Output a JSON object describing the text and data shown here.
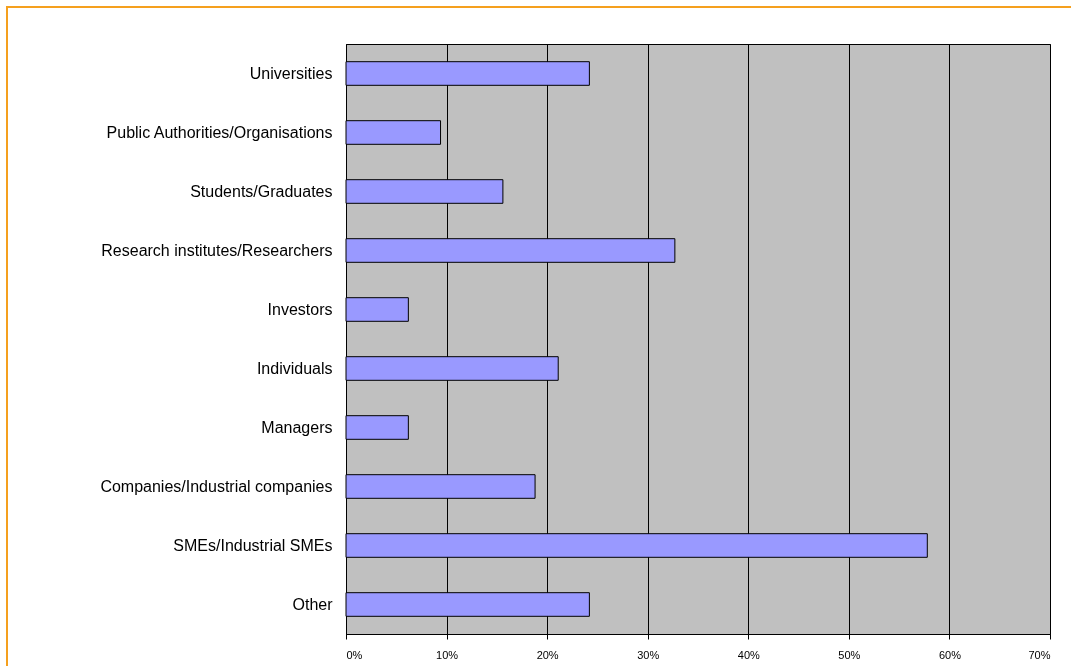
{
  "chart_data": {
    "type": "bar",
    "orientation": "horizontal",
    "categories": [
      "Universities",
      "Public Authorities/Organisations",
      "Students/Graduates",
      "Research institutes/Researchers",
      "Investors",
      "Individuals",
      "Managers",
      "Companies/Industrial companies",
      "SMEs/Industrial SMEs",
      "Other"
    ],
    "values": [
      24.2,
      9.4,
      15.6,
      32.7,
      6.2,
      21.1,
      6.2,
      18.8,
      57.8,
      24.2
    ],
    "color": "#9999ff",
    "xlim": [
      0,
      70
    ],
    "xticks": [
      {
        "value": 0,
        "label": "0%"
      },
      {
        "value": 10,
        "label": "10%"
      },
      {
        "value": 20,
        "label": "20%"
      },
      {
        "value": 30,
        "label": "30%"
      },
      {
        "value": 40,
        "label": "40%"
      },
      {
        "value": 50,
        "label": "50%"
      },
      {
        "value": 60,
        "label": "60%"
      },
      {
        "value": 70,
        "label": "70%"
      }
    ],
    "grid": "x"
  }
}
